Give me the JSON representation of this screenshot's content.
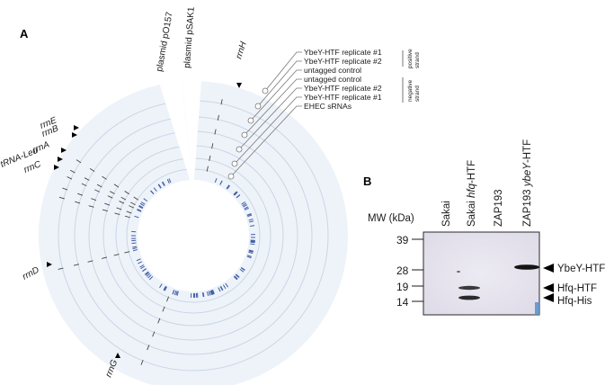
{
  "panel_a": {
    "label": "A",
    "plasmids": [
      "plasmid pO157",
      "plasmid pSAK1"
    ],
    "rrn_labels": [
      "rrnH",
      "rrnE",
      "rrnB",
      "rrnA",
      "tRNA-Leu",
      "rrnC",
      "rrnD",
      "rrnG"
    ],
    "track_legend": [
      "YbeY-HTF replicate #1",
      "YbeY-HTF replicate #2",
      "untagged control",
      "untagged control",
      "YbeY-HTF replicate #2",
      "YbeY-HTF replicate #1",
      "EHEC sRNAs"
    ],
    "strand_positive": [
      "positive",
      "strand"
    ],
    "strand_negative": [
      "negative",
      "strand"
    ],
    "colors": {
      "ring_fill": "#eef3f9",
      "ring_line": "#c9d6e6",
      "srna_mark": "#3f5fa8"
    }
  },
  "panel_b": {
    "label": "B",
    "mw_title": "MW (kDa)",
    "mw_markers": [
      "39",
      "28",
      "19",
      "14"
    ],
    "lanes": [
      {
        "pre": "Sakai",
        "ital": "",
        "post": ""
      },
      {
        "pre": "Sakai ",
        "ital": "hfq",
        "post": "-HTF"
      },
      {
        "pre": "ZAP193",
        "ital": "",
        "post": ""
      },
      {
        "pre": "ZAP193 ",
        "ital": "ybeY",
        "post": "-HTF"
      }
    ],
    "bands": [
      "YbeY-HTF",
      "Hfq-HTF",
      "Hfq-His"
    ]
  }
}
